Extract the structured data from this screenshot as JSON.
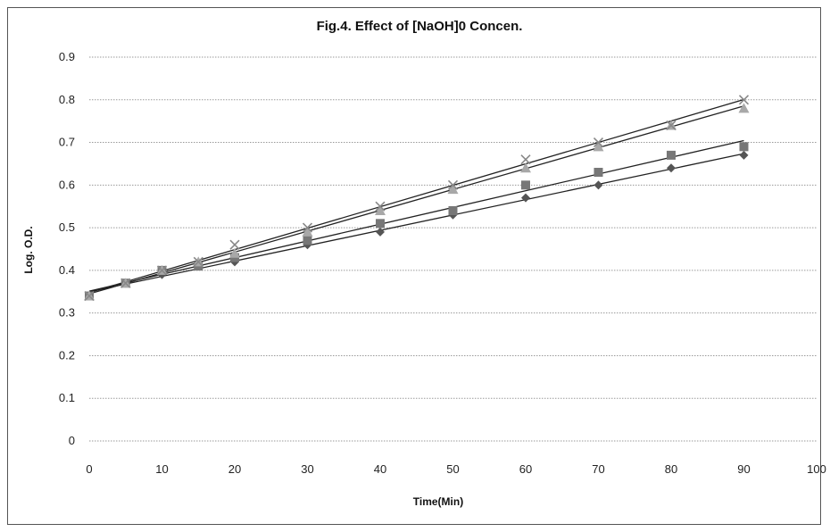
{
  "chart_data": {
    "type": "scatter",
    "title": "Fig.4. Effect of [NaOH]0 Concen.",
    "xlabel": "Time(Min)",
    "ylabel": "Log. O.D.",
    "xlim": [
      0,
      100
    ],
    "ylim": [
      0,
      0.9
    ],
    "xticks": [
      0,
      10,
      20,
      30,
      40,
      50,
      60,
      70,
      80,
      90,
      100
    ],
    "yticks": [
      0,
      0.1,
      0.2,
      0.3,
      0.4,
      0.5,
      0.6,
      0.7,
      0.8,
      0.9
    ],
    "ytick_labels": [
      "0",
      "0.1",
      "0.2",
      "0.3",
      "0.4",
      "0.5",
      "0.6",
      "0.7",
      "0.8",
      "0.9"
    ],
    "grid": true,
    "trendlines": true,
    "series": [
      {
        "marker": "diamond",
        "color": "#555555",
        "x": [
          0,
          5,
          10,
          15,
          20,
          30,
          40,
          50,
          60,
          70,
          80,
          90
        ],
        "y": [
          0.34,
          0.37,
          0.39,
          0.41,
          0.42,
          0.46,
          0.49,
          0.53,
          0.57,
          0.6,
          0.64,
          0.67
        ]
      },
      {
        "marker": "square",
        "color": "#777777",
        "x": [
          0,
          5,
          10,
          15,
          20,
          30,
          40,
          50,
          60,
          70,
          80,
          90
        ],
        "y": [
          0.34,
          0.37,
          0.4,
          0.41,
          0.43,
          0.47,
          0.51,
          0.54,
          0.6,
          0.63,
          0.67,
          0.69
        ]
      },
      {
        "marker": "triangle",
        "color": "#a8a8a8",
        "x": [
          0,
          5,
          10,
          15,
          20,
          30,
          40,
          50,
          60,
          70,
          80,
          90
        ],
        "y": [
          0.34,
          0.37,
          0.4,
          0.42,
          0.44,
          0.49,
          0.54,
          0.59,
          0.64,
          0.69,
          0.74,
          0.78
        ]
      },
      {
        "marker": "x",
        "color": "#888888",
        "x": [
          0,
          5,
          10,
          15,
          20,
          30,
          40,
          50,
          60,
          70,
          80,
          90
        ],
        "y": [
          0.34,
          0.37,
          0.4,
          0.42,
          0.46,
          0.5,
          0.55,
          0.6,
          0.66,
          0.7,
          0.74,
          0.8
        ]
      }
    ]
  }
}
